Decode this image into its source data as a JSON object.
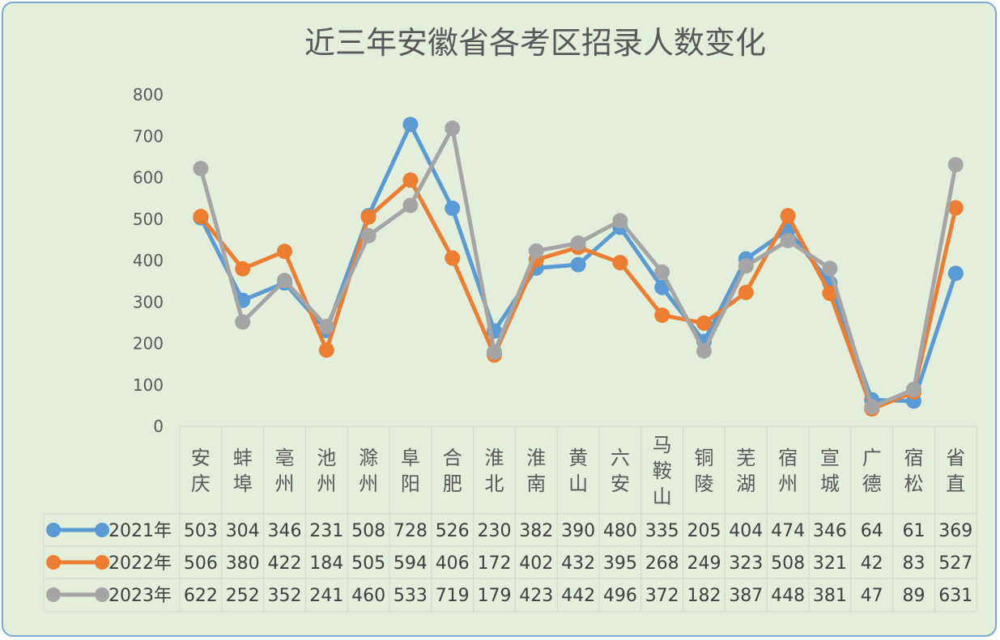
{
  "chart_data": {
    "type": "line",
    "title": "近三年安徽省各考区招录人数变化",
    "categories": [
      "安庆",
      "蚌埠",
      "亳州",
      "池州",
      "滁州",
      "阜阳",
      "合肥",
      "淮北",
      "淮南",
      "黄山",
      "六安",
      "马鞍山",
      "铜陵",
      "芜湖",
      "宿州",
      "宣城",
      "广德",
      "宿松",
      "省直"
    ],
    "series": [
      {
        "name": "2021年",
        "color": "#5b9bd5",
        "values": [
          503,
          304,
          346,
          231,
          508,
          728,
          526,
          230,
          382,
          390,
          480,
          335,
          205,
          404,
          474,
          346,
          64,
          61,
          369
        ]
      },
      {
        "name": "2022年",
        "color": "#ed7d31",
        "values": [
          506,
          380,
          422,
          184,
          505,
          594,
          406,
          172,
          402,
          432,
          395,
          268,
          249,
          323,
          508,
          321,
          42,
          83,
          527
        ]
      },
      {
        "name": "2023年",
        "color": "#a5a5a5",
        "values": [
          622,
          252,
          352,
          241,
          460,
          533,
          719,
          179,
          423,
          442,
          496,
          372,
          182,
          387,
          448,
          381,
          47,
          89,
          631
        ]
      }
    ],
    "ylim": [
      0,
      800
    ],
    "yticks": [
      0,
      100,
      200,
      300,
      400,
      500,
      600,
      700,
      800
    ],
    "grid": false,
    "legend": "data-table"
  }
}
